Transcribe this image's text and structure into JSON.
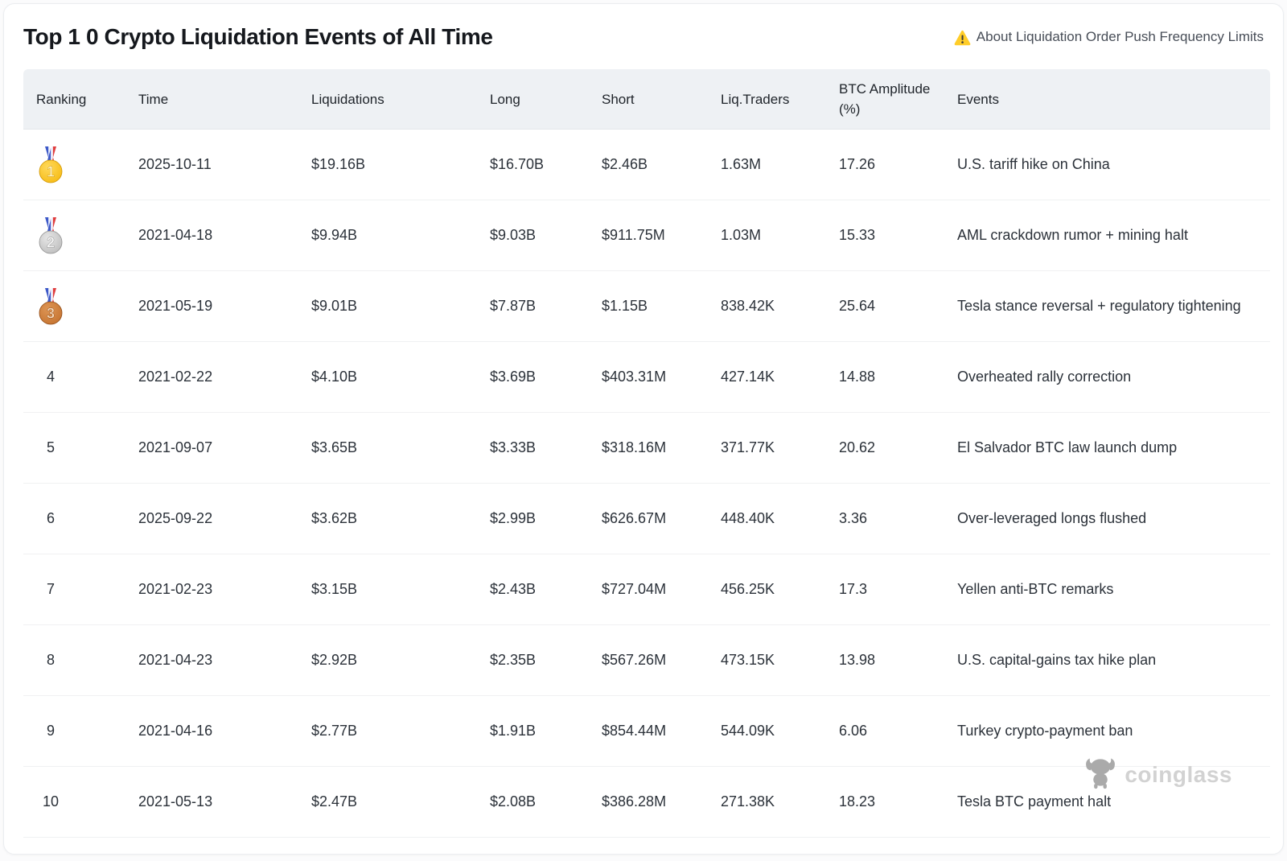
{
  "page_title": "Top 1 0 Crypto Liquidation Events of All Time",
  "about_link": {
    "label": "About Liquidation Order Push Frequency Limits"
  },
  "table": {
    "columns": [
      {
        "key": "ranking",
        "label": "Ranking"
      },
      {
        "key": "time",
        "label": "Time"
      },
      {
        "key": "liquidations",
        "label": "Liquidations"
      },
      {
        "key": "long",
        "label": "Long"
      },
      {
        "key": "short",
        "label": "Short"
      },
      {
        "key": "liq_traders",
        "label": "Liq.Traders"
      },
      {
        "key": "btc_amplitude",
        "label": "BTC Amplitude (%)"
      },
      {
        "key": "events",
        "label": "Events"
      }
    ],
    "rows": [
      {
        "rank": "1",
        "medal": "gold",
        "time": "2025-10-11",
        "liquidations": "$19.16B",
        "long": "$16.70B",
        "short": "$2.46B",
        "liq_traders": "1.63M",
        "btc_amplitude": "17.26",
        "event": "U.S. tariff hike on China"
      },
      {
        "rank": "2",
        "medal": "silver",
        "time": "2021-04-18",
        "liquidations": "$9.94B",
        "long": "$9.03B",
        "short": "$911.75M",
        "liq_traders": "1.03M",
        "btc_amplitude": "15.33",
        "event": "AML crackdown rumor + mining halt"
      },
      {
        "rank": "3",
        "medal": "bronze",
        "time": "2021-05-19",
        "liquidations": "$9.01B",
        "long": "$7.87B",
        "short": "$1.15B",
        "liq_traders": "838.42K",
        "btc_amplitude": "25.64",
        "event": "Tesla stance reversal + regulatory tightening"
      },
      {
        "rank": "4",
        "medal": null,
        "time": "2021-02-22",
        "liquidations": "$4.10B",
        "long": "$3.69B",
        "short": "$403.31M",
        "liq_traders": "427.14K",
        "btc_amplitude": "14.88",
        "event": "Overheated rally correction"
      },
      {
        "rank": "5",
        "medal": null,
        "time": "2021-09-07",
        "liquidations": "$3.65B",
        "long": "$3.33B",
        "short": "$318.16M",
        "liq_traders": "371.77K",
        "btc_amplitude": "20.62",
        "event": "El Salvador BTC law launch dump"
      },
      {
        "rank": "6",
        "medal": null,
        "time": "2025-09-22",
        "liquidations": "$3.62B",
        "long": "$2.99B",
        "short": "$626.67M",
        "liq_traders": "448.40K",
        "btc_amplitude": "3.36",
        "event": "Over-leveraged longs flushed"
      },
      {
        "rank": "7",
        "medal": null,
        "time": "2021-02-23",
        "liquidations": "$3.15B",
        "long": "$2.43B",
        "short": "$727.04M",
        "liq_traders": "456.25K",
        "btc_amplitude": "17.3",
        "event": "Yellen anti-BTC remarks"
      },
      {
        "rank": "8",
        "medal": null,
        "time": "2021-04-23",
        "liquidations": "$2.92B",
        "long": "$2.35B",
        "short": "$567.26M",
        "liq_traders": "473.15K",
        "btc_amplitude": "13.98",
        "event": "U.S. capital-gains tax hike plan"
      },
      {
        "rank": "9",
        "medal": null,
        "time": "2021-04-16",
        "liquidations": "$2.77B",
        "long": "$1.91B",
        "short": "$854.44M",
        "liq_traders": "544.09K",
        "btc_amplitude": "6.06",
        "event": "Turkey crypto-payment ban"
      },
      {
        "rank": "10",
        "medal": null,
        "time": "2021-05-13",
        "liquidations": "$2.47B",
        "long": "$2.08B",
        "short": "$386.28M",
        "liq_traders": "271.38K",
        "btc_amplitude": "18.23",
        "event": "Tesla BTC payment halt"
      }
    ]
  },
  "watermark": {
    "label": "coinglass"
  },
  "colors": {
    "header_bg": "#eef1f4",
    "row_divider": "#f0f1f2",
    "text_primary": "#2b3139",
    "link_text": "#474d57",
    "warning_yellow": "#ffcd29",
    "warning_exclaim": "#3a3a3a",
    "medal_gold": "#f5b80d",
    "medal_silver": "#b9b9b9",
    "medal_bronze": "#c3702c",
    "ribbon_blue": "#3d59c8",
    "ribbon_white": "#f4f6ff",
    "ribbon_red": "#e03e3e",
    "watermark_gray": "#d2d2d2",
    "watermark_logo_gray": "#aaaaaa"
  }
}
